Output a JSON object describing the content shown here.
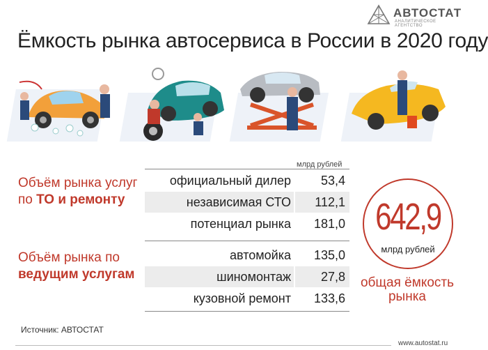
{
  "brand": {
    "name": "АВТОСТАТ",
    "tagline": "АНАЛИТИЧЕСКОЕ АГЕНТСТВО"
  },
  "title": "Ёмкость рынка автосервиса в России в 2020 году",
  "unit_note": "млрд рублей",
  "group1": {
    "line1": "Объём рынка услуг",
    "line2_prefix": "по ",
    "line2_bold": "ТО и ремонту"
  },
  "group2": {
    "line1": "Объём рынка по",
    "line2_bold": "ведущим услугам"
  },
  "rows": [
    {
      "name": "официальный дилер",
      "value": "53,4"
    },
    {
      "name": "независимая  СТО",
      "value": "112,1"
    },
    {
      "name": "потенциал рынка",
      "value": "181,0"
    },
    {
      "name": "автомойка",
      "value": "135,0"
    },
    {
      "name": "шиномонтаж",
      "value": "27,8"
    },
    {
      "name": "кузовной ремонт",
      "value": "133,6"
    }
  ],
  "total": {
    "value": "642,9",
    "unit": "млрд рублей",
    "label_line1": "общая ёмкость",
    "label_line2": "рынка"
  },
  "source": "Источник: АВТОСТАТ",
  "url": "www.autostat.ru",
  "colors": {
    "accent": "#c0392b",
    "shade": "#ececec"
  }
}
